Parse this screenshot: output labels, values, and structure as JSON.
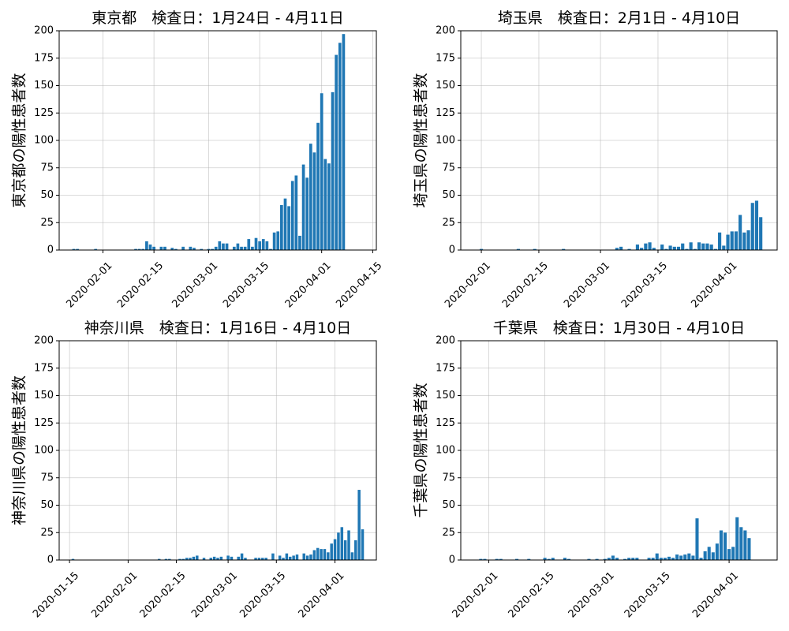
{
  "chart_data": [
    {
      "type": "bar",
      "title": "東京都　検査日：1月24日 - 4月11日",
      "ylabel": "東京都の陽性患者数",
      "xlabel": "",
      "ylim": [
        0,
        200
      ],
      "yticks": [
        0,
        25,
        50,
        75,
        100,
        125,
        150,
        175,
        200
      ],
      "xlim": [
        "2020-01-20",
        "2020-04-16"
      ],
      "xticks": [
        "2020-02-01",
        "2020-02-15",
        "2020-03-01",
        "2020-03-15",
        "2020-04-01",
        "2020-04-15"
      ],
      "grid": true,
      "color": "#1f77b4",
      "x": [
        "2020-01-24",
        "2020-01-25",
        "2020-01-30",
        "2020-02-10",
        "2020-02-11",
        "2020-02-12",
        "2020-02-13",
        "2020-02-14",
        "2020-02-15",
        "2020-02-17",
        "2020-02-18",
        "2020-02-20",
        "2020-02-21",
        "2020-02-23",
        "2020-02-25",
        "2020-02-26",
        "2020-02-28",
        "2020-03-01",
        "2020-03-02",
        "2020-03-03",
        "2020-03-04",
        "2020-03-05",
        "2020-03-06",
        "2020-03-08",
        "2020-03-09",
        "2020-03-10",
        "2020-03-11",
        "2020-03-12",
        "2020-03-13",
        "2020-03-14",
        "2020-03-15",
        "2020-03-16",
        "2020-03-17",
        "2020-03-18",
        "2020-03-19",
        "2020-03-20",
        "2020-03-21",
        "2020-03-22",
        "2020-03-23",
        "2020-03-24",
        "2020-03-25",
        "2020-03-26",
        "2020-03-27",
        "2020-03-28",
        "2020-03-29",
        "2020-03-30",
        "2020-03-31",
        "2020-04-01",
        "2020-04-02",
        "2020-04-03",
        "2020-04-04",
        "2020-04-05",
        "2020-04-06",
        "2020-04-07",
        "2020-04-08",
        "2020-04-09",
        "2020-04-10",
        "2020-04-11"
      ],
      "values": [
        1,
        1,
        1,
        1,
        1,
        1,
        8,
        5,
        3,
        3,
        3,
        2,
        1,
        3,
        3,
        2,
        1,
        1,
        1,
        3,
        8,
        6,
        6,
        3,
        6,
        3,
        3,
        10,
        3,
        11,
        8,
        10,
        8,
        1,
        16,
        17,
        41,
        47,
        40,
        63,
        68,
        13,
        78,
        66,
        97,
        89,
        116,
        143,
        83,
        79,
        144,
        178,
        189,
        197,
        0,
        0,
        0,
        0
      ]
    },
    {
      "type": "bar",
      "title": "埼玉県　検査日：2月1日 - 4月10日",
      "ylabel": "埼玉県の陽性患者数",
      "xlabel": "",
      "ylim": [
        0,
        200
      ],
      "yticks": [
        0,
        25,
        50,
        75,
        100,
        125,
        150,
        175,
        200
      ],
      "xlim": [
        "2020-01-27",
        "2020-04-13"
      ],
      "xticks": [
        "2020-02-01",
        "2020-02-15",
        "2020-03-01",
        "2020-03-15",
        "2020-04-01"
      ],
      "grid": true,
      "color": "#1f77b4",
      "x": [
        "2020-02-01",
        "2020-02-10",
        "2020-02-14",
        "2020-02-21",
        "2020-03-05",
        "2020-03-06",
        "2020-03-08",
        "2020-03-10",
        "2020-03-11",
        "2020-03-12",
        "2020-03-13",
        "2020-03-14",
        "2020-03-16",
        "2020-03-17",
        "2020-03-18",
        "2020-03-19",
        "2020-03-20",
        "2020-03-21",
        "2020-03-22",
        "2020-03-23",
        "2020-03-24",
        "2020-03-25",
        "2020-03-26",
        "2020-03-27",
        "2020-03-28",
        "2020-03-29",
        "2020-03-30",
        "2020-03-31",
        "2020-04-01",
        "2020-04-02",
        "2020-04-03",
        "2020-04-04",
        "2020-04-05",
        "2020-04-06",
        "2020-04-07",
        "2020-04-08",
        "2020-04-09",
        "2020-04-10"
      ],
      "values": [
        1,
        1,
        1,
        1,
        2,
        3,
        1,
        5,
        2,
        6,
        7,
        2,
        5,
        1,
        4,
        3,
        3,
        6,
        1,
        7,
        1,
        7,
        6,
        6,
        5,
        1,
        16,
        4,
        14,
        17,
        17,
        32,
        16,
        18,
        43,
        45,
        30,
        0
      ]
    },
    {
      "type": "bar",
      "title": "神奈川県　検査日：1月16日 - 4月10日",
      "ylabel": "神奈川県の陽性患者数",
      "xlabel": "",
      "ylim": [
        0,
        200
      ],
      "yticks": [
        0,
        25,
        50,
        75,
        100,
        125,
        150,
        175,
        200
      ],
      "xlim": [
        "2020-01-12",
        "2020-04-13"
      ],
      "xticks": [
        "2020-01-15",
        "2020-02-01",
        "2020-02-15",
        "2020-03-01",
        "2020-03-15",
        "2020-04-01"
      ],
      "grid": true,
      "color": "#1f77b4",
      "x": [
        "2020-01-16",
        "2020-02-10",
        "2020-02-12",
        "2020-02-13",
        "2020-02-16",
        "2020-02-17",
        "2020-02-18",
        "2020-02-19",
        "2020-02-20",
        "2020-02-21",
        "2020-02-23",
        "2020-02-25",
        "2020-02-26",
        "2020-02-27",
        "2020-02-28",
        "2020-03-01",
        "2020-03-02",
        "2020-03-04",
        "2020-03-05",
        "2020-03-06",
        "2020-03-09",
        "2020-03-10",
        "2020-03-11",
        "2020-03-12",
        "2020-03-14",
        "2020-03-16",
        "2020-03-17",
        "2020-03-18",
        "2020-03-19",
        "2020-03-20",
        "2020-03-21",
        "2020-03-23",
        "2020-03-24",
        "2020-03-25",
        "2020-03-26",
        "2020-03-27",
        "2020-03-28",
        "2020-03-29",
        "2020-03-30",
        "2020-03-31",
        "2020-04-01",
        "2020-04-02",
        "2020-04-03",
        "2020-04-04",
        "2020-04-05",
        "2020-04-06",
        "2020-04-07",
        "2020-04-08",
        "2020-04-09"
      ],
      "values": [
        1,
        1,
        1,
        1,
        1,
        1,
        2,
        2,
        3,
        4,
        2,
        2,
        3,
        2,
        3,
        4,
        3,
        3,
        6,
        2,
        2,
        2,
        2,
        2,
        6,
        4,
        2,
        6,
        3,
        4,
        5,
        6,
        4,
        5,
        9,
        11,
        10,
        10,
        7,
        15,
        19,
        25,
        30,
        18,
        27,
        7,
        18,
        64,
        28
      ]
    },
    {
      "type": "bar",
      "title": "千葉県　検査日：1月30日 - 4月10日",
      "ylabel": "千葉県の陽性患者数",
      "xlabel": "",
      "ylim": [
        0,
        200
      ],
      "yticks": [
        0,
        25,
        50,
        75,
        100,
        125,
        150,
        175,
        200
      ],
      "xlim": [
        "2020-01-25",
        "2020-04-13"
      ],
      "xticks": [
        "2020-02-01",
        "2020-02-15",
        "2020-03-01",
        "2020-03-15",
        "2020-04-01"
      ],
      "grid": true,
      "color": "#1f77b4",
      "x": [
        "2020-01-30",
        "2020-01-31",
        "2020-02-03",
        "2020-02-04",
        "2020-02-08",
        "2020-02-11",
        "2020-02-15",
        "2020-02-16",
        "2020-02-17",
        "2020-02-20",
        "2020-02-21",
        "2020-02-26",
        "2020-02-28",
        "2020-03-01",
        "2020-03-02",
        "2020-03-03",
        "2020-03-04",
        "2020-03-06",
        "2020-03-07",
        "2020-03-08",
        "2020-03-09",
        "2020-03-12",
        "2020-03-13",
        "2020-03-14",
        "2020-03-15",
        "2020-03-16",
        "2020-03-17",
        "2020-03-18",
        "2020-03-19",
        "2020-03-20",
        "2020-03-21",
        "2020-03-22",
        "2020-03-23",
        "2020-03-24",
        "2020-03-25",
        "2020-03-26",
        "2020-03-27",
        "2020-03-28",
        "2020-03-29",
        "2020-03-30",
        "2020-03-31",
        "2020-04-01",
        "2020-04-02",
        "2020-04-03",
        "2020-04-04",
        "2020-04-05",
        "2020-04-06",
        "2020-04-07",
        "2020-04-08",
        "2020-04-09",
        "2020-04-10"
      ],
      "values": [
        1,
        1,
        1,
        1,
        1,
        1,
        2,
        1,
        2,
        2,
        1,
        1,
        1,
        1,
        2,
        4,
        2,
        1,
        2,
        2,
        2,
        2,
        2,
        6,
        2,
        2,
        3,
        2,
        5,
        4,
        5,
        6,
        4,
        38,
        2,
        8,
        12,
        7,
        15,
        27,
        25,
        10,
        12,
        39,
        30,
        27,
        20,
        0,
        0,
        0,
        0
      ]
    }
  ]
}
